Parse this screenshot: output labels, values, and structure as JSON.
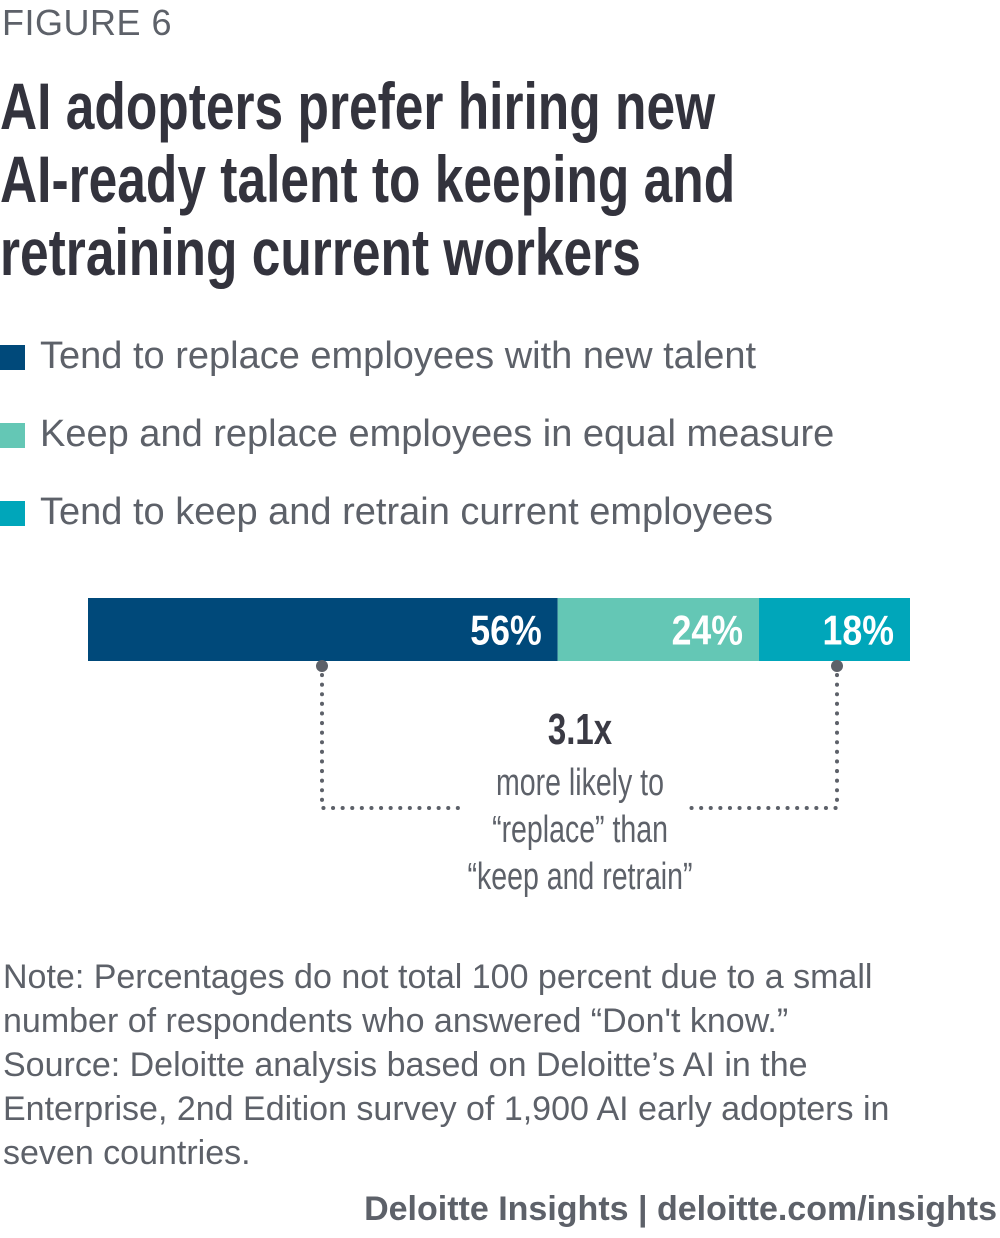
{
  "figure_label": "FIGURE 6",
  "title_lines": [
    "AI adopters prefer hiring new",
    "AI-ready talent to keeping and",
    "retraining current workers"
  ],
  "chart_data": {
    "type": "bar",
    "orientation": "horizontal-stacked",
    "title": "AI adopters prefer hiring new AI-ready talent to keeping and retraining current workers",
    "series": [
      {
        "name": "Tend to replace employees with new talent",
        "value": 56,
        "label": "56%",
        "color": "#00497a"
      },
      {
        "name": "Keep and replace employees in equal measure",
        "value": 24,
        "label": "24%",
        "color": "#64c7b5"
      },
      {
        "name": "Tend to keep and retrain current employees",
        "value": 18,
        "label": "18%",
        "color": "#00a6ba"
      }
    ],
    "legend_position": "top-left",
    "annotation": {
      "value": "3.1x",
      "lines": [
        "more likely to",
        "“replace” than",
        "“keep and retrain”"
      ]
    }
  },
  "note_lines": [
    "Note: Percentages do not total 100 percent due to a small",
    "number of respondents who answered “Don't know.”",
    "Source: Deloitte analysis based on Deloitte’s AI in the",
    "Enterprise, 2nd Edition survey of 1,900 AI early adopters in",
    "seven countries."
  ],
  "footer": "Deloitte Insights | deloitte.com/insights"
}
